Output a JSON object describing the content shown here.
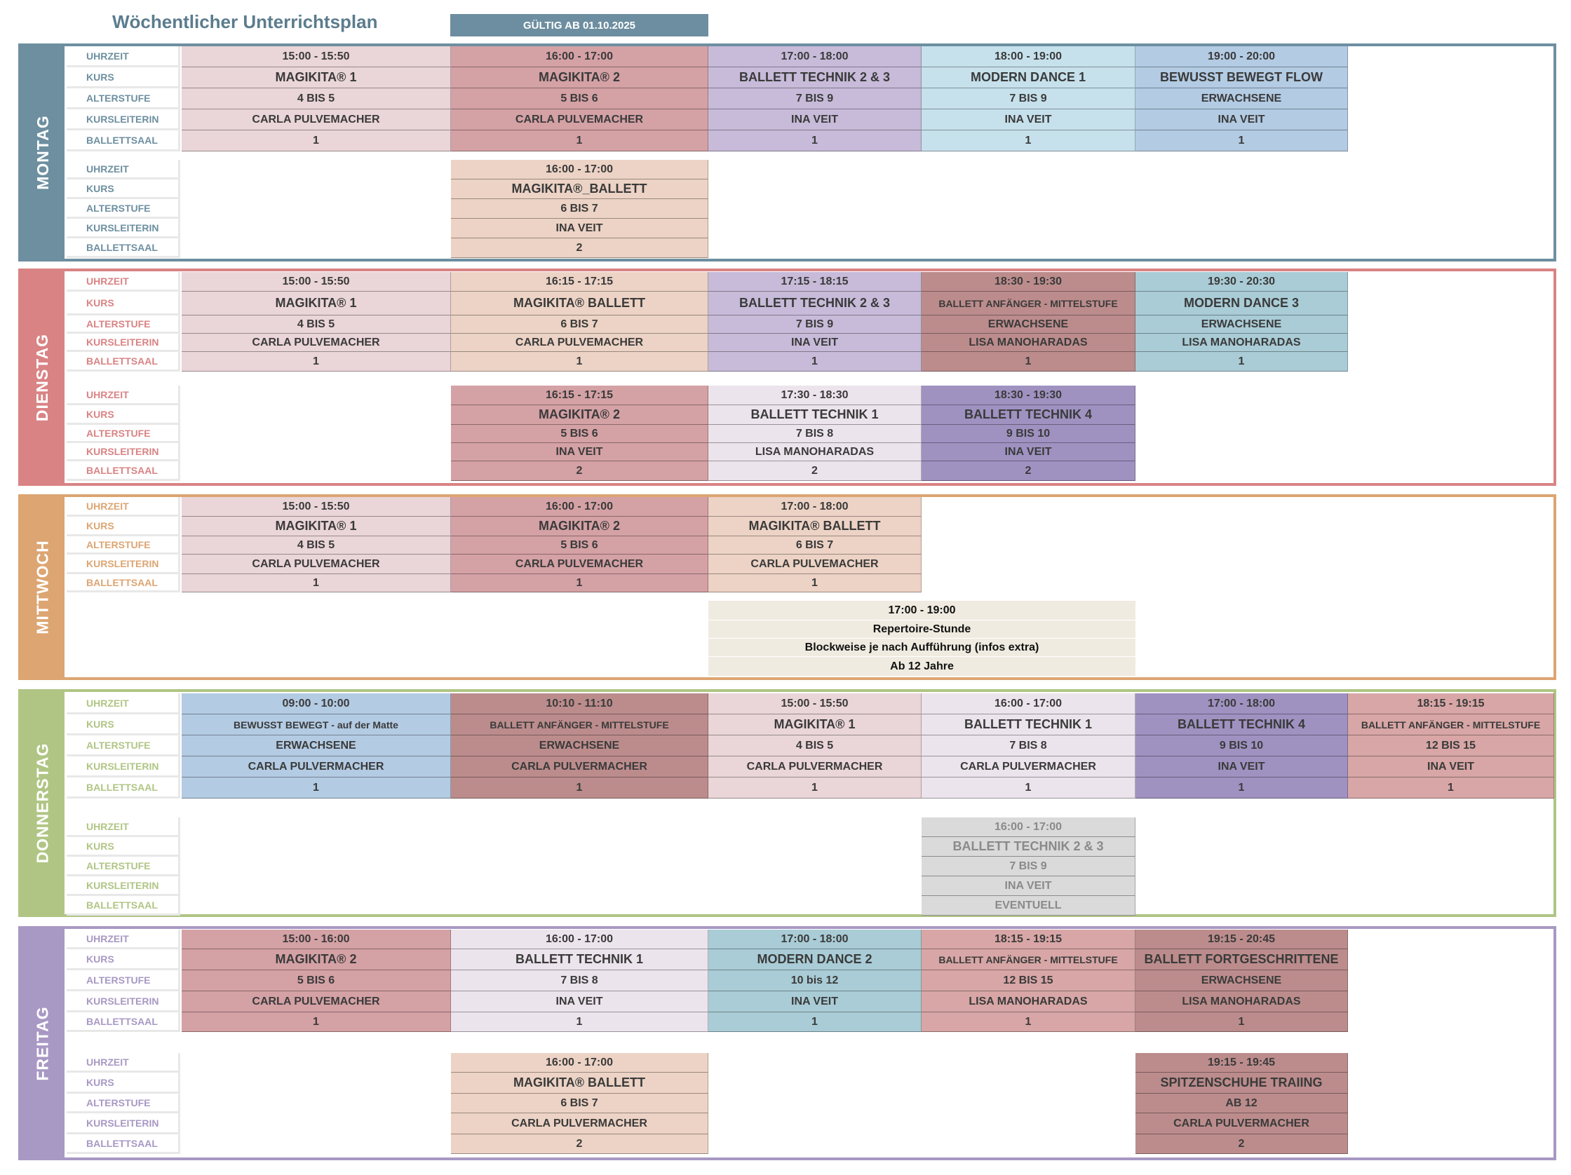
{
  "header": {
    "title": "Wöchentlicher Unterrichtsplan",
    "validity": "GÜLTIG AB 01.10.2025"
  },
  "row_labels": [
    "UHRZEIT",
    "KURS",
    "ALTERSTUFE",
    "KURSLEITERIN",
    "BALLETTSAAL"
  ],
  "colors": {
    "montag": "#6d8fa0",
    "dienstag": "#d98384",
    "mittwoch": "#dca572",
    "donnerstag": "#b0c584",
    "freitag": "#a898c4",
    "magikita1": "#ead5d8",
    "magikita2": "#d4a1a5",
    "magikita_ballett": "#ecd3c5",
    "lavender": "#c7bbd9",
    "lightblue": "#c6e1ec",
    "steelblue": "#b3cbe3",
    "brown": "#bc8c8c",
    "teal": "#a9ccd6",
    "pale": "#ece4ec",
    "purple": "#9f92c1",
    "rose": "#d8a6a6",
    "gray": "#dadada",
    "cream": "#efebe0"
  },
  "days": [
    {
      "name": "MONTAG",
      "blocks": [
        [
          {
            "time": "15:00 - 15:50",
            "kurs": "MAGIKITA® 1",
            "alter": "4 BIS 5",
            "leiterin": "CARLA PULVEMACHER",
            "saal": "1"
          },
          {
            "time": "16:00 - 17:00",
            "kurs": "MAGIKITA® 2",
            "alter": "5 BIS 6",
            "leiterin": "CARLA PULVEMACHER",
            "saal": "1"
          },
          {
            "time": "17:00 - 18:00",
            "kurs": "BALLETT TECHNIK 2 & 3",
            "alter": "7 BIS 9",
            "leiterin": "INA VEIT",
            "saal": "1"
          },
          {
            "time": "18:00 - 19:00",
            "kurs": "MODERN DANCE 1",
            "alter": "7 BIS 9",
            "leiterin": "INA VEIT",
            "saal": "1"
          },
          {
            "time": "19:00 - 20:00",
            "kurs": "BEWUSST BEWEGT FLOW",
            "alter": "ERWACHSENE",
            "leiterin": "INA VEIT",
            "saal": "1"
          }
        ],
        [
          {
            "time": "16:00 - 17:00",
            "kurs": "MAGIKITA®_BALLETT",
            "alter": "6 BIS 7",
            "leiterin": "INA VEIT",
            "saal": "2"
          }
        ]
      ]
    },
    {
      "name": "DIENSTAG",
      "blocks": [
        [
          {
            "time": "15:00 - 15:50",
            "kurs": "MAGIKITA® 1",
            "alter": "4 BIS 5",
            "leiterin": "CARLA PULVEMACHER",
            "saal": "1"
          },
          {
            "time": "16:15 - 17:15",
            "kurs": "MAGIKITA® BALLETT",
            "alter": "6 BIS 7",
            "leiterin": "CARLA PULVEMACHER",
            "saal": "1"
          },
          {
            "time": "17:15 - 18:15",
            "kurs": "BALLETT TECHNIK 2 & 3",
            "alter": "7 BIS 9",
            "leiterin": "INA VEIT",
            "saal": "1"
          },
          {
            "time": "18:30 - 19:30",
            "kurs": "BALLETT ANFÄNGER - MITTELSTUFE",
            "alter": "ERWACHSENE",
            "leiterin": "LISA MANOHARADAS",
            "saal": "1"
          },
          {
            "time": "19:30 - 20:30",
            "kurs": "MODERN DANCE 3",
            "alter": "ERWACHSENE",
            "leiterin": "LISA MANOHARADAS",
            "saal": "1"
          }
        ],
        [
          {
            "time": "16:15 - 17:15",
            "kurs": "MAGIKITA® 2",
            "alter": "5 BIS 6",
            "leiterin": "INA VEIT",
            "saal": "2"
          },
          {
            "time": "17:30 - 18:30",
            "kurs": "BALLETT TECHNIK 1",
            "alter": "7 BIS 8",
            "leiterin": "LISA MANOHARADAS",
            "saal": "2"
          },
          {
            "time": "18:30 - 19:30",
            "kurs": "BALLETT TECHNIK 4",
            "alter": "9 BIS 10",
            "leiterin": "INA VEIT",
            "saal": "2"
          }
        ]
      ]
    },
    {
      "name": "MITTWOCH",
      "blocks": [
        [
          {
            "time": "15:00 - 15:50",
            "kurs": "MAGIKITA® 1",
            "alter": "4 BIS 5",
            "leiterin": "CARLA PULVEMACHER",
            "saal": "1"
          },
          {
            "time": "16:00 - 17:00",
            "kurs": "MAGIKITA® 2",
            "alter": "5 BIS 6",
            "leiterin": "CARLA PULVEMACHER",
            "saal": "1"
          },
          {
            "time": "17:00 - 18:00",
            "kurs": "MAGIKITA® BALLETT",
            "alter": "6 BIS 7",
            "leiterin": "CARLA PULVEMACHER",
            "saal": "1"
          }
        ]
      ],
      "special": [
        "17:00 - 19:00",
        "Repertoire-Stunde",
        "Blockweise je nach Aufführung (infos extra)",
        "Ab 12 Jahre"
      ]
    },
    {
      "name": "DONNERSTAG",
      "blocks": [
        [
          {
            "time": "09:00 - 10:00",
            "kurs": "BEWUSST BEWEGT - auf der Matte",
            "alter": "ERWACHSENE",
            "leiterin": "CARLA PULVERMACHER",
            "saal": "1"
          },
          {
            "time": "10:10 - 11:10",
            "kurs": "BALLETT ANFÄNGER - MITTELSTUFE",
            "alter": "ERWACHSENE",
            "leiterin": "CARLA PULVERMACHER",
            "saal": "1"
          },
          {
            "time": "15:00 - 15:50",
            "kurs": "MAGIKITA® 1",
            "alter": "4 BIS 5",
            "leiterin": "CARLA PULVERMACHER",
            "saal": "1"
          },
          {
            "time": "16:00 - 17:00",
            "kurs": "BALLETT TECHNIK 1",
            "alter": "7 BIS 8",
            "leiterin": "CARLA PULVERMACHER",
            "saal": "1"
          },
          {
            "time": "17:00 - 18:00",
            "kurs": "BALLETT TECHNIK 4",
            "alter": "9 BIS 10",
            "leiterin": "INA VEIT",
            "saal": "1"
          },
          {
            "time": "18:15 - 19:15",
            "kurs": "BALLETT ANFÄNGER - MITTELSTUFE",
            "alter": "12 BIS 15",
            "leiterin": "INA VEIT",
            "saal": "1"
          }
        ],
        [
          {
            "time": "16:00 - 17:00",
            "kurs": "BALLETT TECHNIK 2 & 3",
            "alter": "7 BIS 9",
            "leiterin": "INA VEIT",
            "saal": "EVENTUELL"
          }
        ]
      ]
    },
    {
      "name": "FREITAG",
      "blocks": [
        [
          {
            "time": "15:00 - 16:00",
            "kurs": "MAGIKITA® 2",
            "alter": "5 BIS 6",
            "leiterin": "CARLA PULVEMACHER",
            "saal": "1"
          },
          {
            "time": "16:00 - 17:00",
            "kurs": "BALLETT TECHNIK 1",
            "alter": "7 BIS 8",
            "leiterin": "INA VEIT",
            "saal": "1"
          },
          {
            "time": "17:00 - 18:00",
            "kurs": "MODERN DANCE 2",
            "alter": "10 bis 12",
            "leiterin": "INA VEIT",
            "saal": "1"
          },
          {
            "time": "18:15 - 19:15",
            "kurs": "BALLETT ANFÄNGER - MITTELSTUFE",
            "alter": "12 BIS 15",
            "leiterin": "LISA MANOHARADAS",
            "saal": "1"
          },
          {
            "time": "19:15 - 20:45",
            "kurs": "BALLETT  FORTGESCHRITTENE",
            "alter": "ERWACHSENE",
            "leiterin": "LISA MANOHARADAS",
            "saal": "1"
          }
        ],
        [
          {
            "time": "16:00 - 17:00",
            "kurs": "MAGIKITA® BALLETT",
            "alter": "6 BIS 7",
            "leiterin": "CARLA PULVERMACHER",
            "saal": "2"
          },
          {
            "time": "19:15 - 19:45",
            "kurs": "SPITZENSCHUHE TRAIING",
            "alter": "AB 12",
            "leiterin": "CARLA PULVERMACHER",
            "saal": "2"
          }
        ]
      ]
    }
  ]
}
